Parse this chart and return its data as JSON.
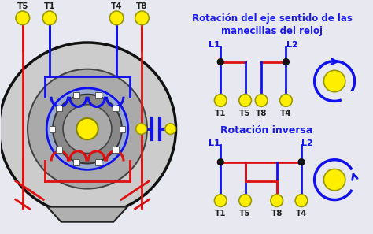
{
  "bg_color": "#e8e8f0",
  "title1": "Rotación del eje sentido de las",
  "title1b": "manecillas del reloj",
  "title2": "Rotación inversa",
  "title_color": "#1a1aee",
  "title_fontsize": 8.5,
  "wire_blue": "#1111ee",
  "wire_red": "#dd1111",
  "node_color": "#111111",
  "terminal_fill": "#ffee00",
  "terminal_edge": "#999900",
  "motor_gray": "#cccccc",
  "motor_dark": "#111111",
  "inner_gray": "#aaaaaa",
  "rotor_blue": "#aabbdd",
  "rotor_ring": "#888888"
}
